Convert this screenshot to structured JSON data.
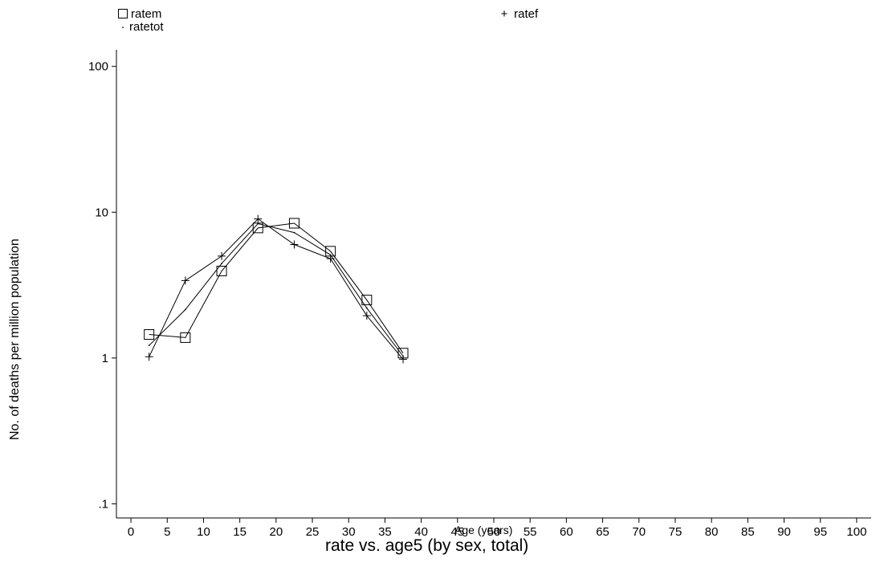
{
  "chart_data": {
    "type": "line",
    "title": "rate vs. age5 (by sex, total)",
    "xlabel": "Age (years)",
    "ylabel": "No. of deaths per million population",
    "xlim": [
      -2,
      102
    ],
    "ylim": [
      0.08,
      130
    ],
    "y_scale": "log",
    "grid": false,
    "legend_placement": "top",
    "x_ticks": [
      0,
      5,
      10,
      15,
      20,
      25,
      30,
      35,
      40,
      45,
      50,
      55,
      60,
      65,
      70,
      75,
      80,
      85,
      90,
      95,
      100
    ],
    "y_ticks": [
      0.1,
      1,
      10,
      100
    ],
    "y_tick_labels": [
      ".1",
      "1",
      "10",
      "100"
    ],
    "x": [
      2.5,
      7.5,
      12.5,
      17.5,
      22.5,
      27.5,
      32.5,
      37.5
    ],
    "series": [
      {
        "name": "ratem",
        "marker": "square",
        "values": [
          1.45,
          1.38,
          3.95,
          7.8,
          8.4,
          5.4,
          2.5,
          1.08
        ]
      },
      {
        "name": "ratef",
        "marker": "plus",
        "values": [
          1.02,
          3.4,
          5.0,
          9.0,
          6.0,
          4.8,
          1.95,
          0.98
        ]
      },
      {
        "name": "ratetot",
        "marker": "dot",
        "values": [
          1.22,
          2.15,
          4.45,
          8.35,
          7.25,
          5.1,
          2.2,
          1.03
        ]
      }
    ]
  },
  "legend": {
    "ratem_label": "ratem",
    "ratef_label": "ratef",
    "ratetot_label": "ratetot",
    "ratem_symbol": "□",
    "ratef_symbol": "+",
    "ratetot_symbol": "·"
  },
  "colors": {
    "line": "#000000",
    "background": "#ffffff"
  }
}
